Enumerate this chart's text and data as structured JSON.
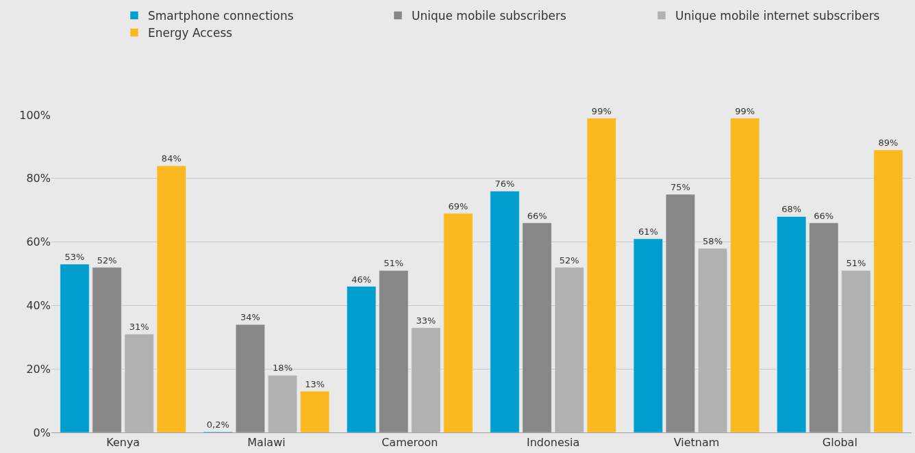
{
  "chart_data": {
    "type": "bar",
    "categories": [
      "Kenya",
      "Malawi",
      "Cameroon",
      "Indonesia",
      "Vietnam",
      "Global"
    ],
    "series": [
      {
        "name": "Smartphone connections",
        "color": "#009ecf",
        "values": [
          53,
          0.2,
          46,
          76,
          61,
          68
        ],
        "value_labels": [
          "53%",
          "0,2%",
          "46%",
          "76%",
          "61%",
          "68%"
        ]
      },
      {
        "name": "Unique mobile subscribers",
        "color": "#878787",
        "values": [
          52,
          34,
          51,
          66,
          75,
          66
        ],
        "value_labels": [
          "52%",
          "34%",
          "51%",
          "66%",
          "75%",
          "66%"
        ]
      },
      {
        "name": "Unique mobile internet subscribers",
        "color": "#b1b1b1",
        "values": [
          31,
          18,
          33,
          52,
          58,
          51
        ],
        "value_labels": [
          "31%",
          "18%",
          "33%",
          "52%",
          "58%",
          "51%"
        ]
      },
      {
        "name": "Energy Access",
        "color": "#fbb921",
        "values": [
          84,
          13,
          69,
          99,
          99,
          89
        ],
        "value_labels": [
          "84%",
          "13%",
          "69%",
          "99%",
          "99%",
          "89%"
        ]
      }
    ],
    "ylim": [
      0,
      100
    ],
    "yticks": [
      {
        "value": 0,
        "label": "0%"
      },
      {
        "value": 20,
        "label": "20%"
      },
      {
        "value": 40,
        "label": "40%"
      },
      {
        "value": 60,
        "label": "60%"
      },
      {
        "value": 80,
        "label": "80%"
      },
      {
        "value": 100,
        "label": "100%"
      }
    ],
    "grid": "y",
    "legend": "top right"
  }
}
